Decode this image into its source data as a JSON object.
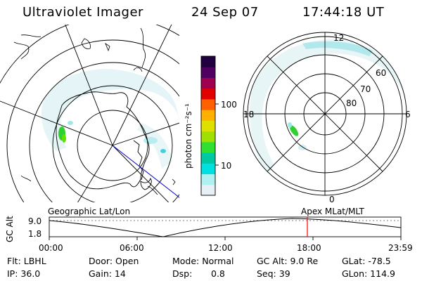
{
  "header": {
    "instrument": "Ultraviolet Imager",
    "date": "24 Sep 07",
    "time": "17:44:18 UT"
  },
  "left_panel": {
    "name": "Geographic Lat/Lon"
  },
  "right_panel": {
    "name": "Apex MLat/MLT",
    "mlt_labels": [
      "12",
      "18",
      "6",
      "0"
    ],
    "lat_labels": [
      "60",
      "70",
      "80"
    ]
  },
  "colorbar": {
    "unit_label": "photon cm⁻²s⁻¹",
    "ticks": [
      "100",
      "10"
    ],
    "colors": [
      "#e6f0f5",
      "#b0f0f0",
      "#00e0e0",
      "#00c8a0",
      "#30e030",
      "#a0e000",
      "#e0e000",
      "#ffb000",
      "#ff6000",
      "#e00000",
      "#a00050",
      "#500060",
      "#200040"
    ]
  },
  "timeline": {
    "axis_label": "GC Alt",
    "y_ticks": [
      "9.0",
      "1.8"
    ],
    "x_ticks": [
      "00:00",
      "06:00",
      "12:00",
      "18:00",
      "23:59"
    ],
    "current_marker_time": "17:44",
    "marker_color": "#ff0000"
  },
  "footer": {
    "flt": "Flt: LBHL",
    "ip": "IP: 36.0",
    "door": "Door: Open",
    "gain": "Gain: 14",
    "mode": "Mode: Normal",
    "dsp_label": "Dsp:",
    "dsp_value": "0.8",
    "gc_alt": "GC Alt: 9.0 Re",
    "seq": "Seq: 39",
    "glat": "GLat: -78.5",
    "glon": "GLon: 114.9"
  }
}
